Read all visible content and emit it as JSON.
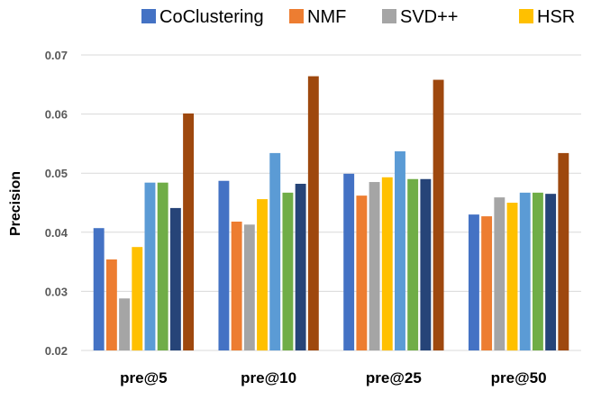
{
  "chart_data": {
    "type": "bar",
    "title": "",
    "xlabel": "",
    "ylabel": "Precision",
    "ylim": [
      0.02,
      0.07
    ],
    "yticks": [
      "0.02",
      "0.03",
      "0.04",
      "0.05",
      "0.06",
      "0.07"
    ],
    "grid": true,
    "legend_position": "top",
    "categories": [
      "pre@5",
      "pre@10",
      "pre@25",
      "pre@50"
    ],
    "series": [
      {
        "name": "CoClustering",
        "color": "#4472C4",
        "values": [
          0.0407,
          0.0487,
          0.0499,
          0.043
        ]
      },
      {
        "name": "NMF",
        "color": "#ED7D31",
        "values": [
          0.0354,
          0.0418,
          0.0462,
          0.0427
        ]
      },
      {
        "name": "SVD++",
        "color": "#A5A5A5",
        "values": [
          0.0288,
          0.0413,
          0.0485,
          0.0459
        ]
      },
      {
        "name": "HSR",
        "color": "#FFC000",
        "values": [
          0.0375,
          0.0456,
          0.0493,
          0.045
        ]
      },
      {
        "name": "",
        "color": "#5B9BD5",
        "values": [
          0.0484,
          0.0534,
          0.0537,
          0.0467
        ]
      },
      {
        "name": "",
        "color": "#70AD47",
        "values": [
          0.0484,
          0.0467,
          0.049,
          0.0467
        ]
      },
      {
        "name": "",
        "color": "#264478",
        "values": [
          0.0441,
          0.0482,
          0.049,
          0.0465
        ]
      },
      {
        "name": "",
        "color": "#9E480E",
        "values": [
          0.0601,
          0.0664,
          0.0658,
          0.0534
        ]
      }
    ]
  }
}
